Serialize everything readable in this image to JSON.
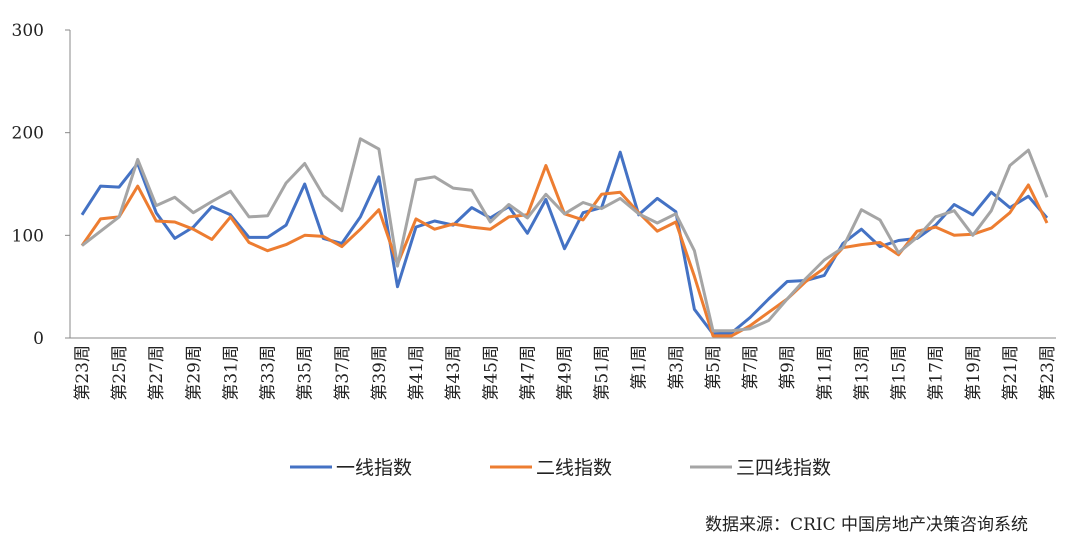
{
  "chart_data": {
    "type": "line",
    "categories": [
      "第23周",
      null,
      "第25周",
      null,
      "第27周",
      null,
      "第29周",
      null,
      "第31周",
      null,
      "第33周",
      null,
      "第35周",
      null,
      "第37周",
      null,
      "第39周",
      null,
      "第41周",
      null,
      "第43周",
      null,
      "第45周",
      null,
      "第47周",
      null,
      "第49周",
      null,
      "第51周",
      null,
      "第1周",
      null,
      "第3周",
      null,
      "第5周",
      null,
      "第7周",
      null,
      "第9周",
      null,
      "第11周",
      null,
      "第13周",
      null,
      "第15周",
      null,
      "第17周",
      null,
      "第19周",
      null,
      "第21周",
      null,
      "第23周"
    ],
    "series": [
      {
        "name": "一线指数",
        "color": "#4472c4",
        "values": [
          120,
          148,
          147,
          170,
          122,
          97,
          108,
          128,
          120,
          98,
          98,
          110,
          150,
          97,
          92,
          118,
          157,
          50,
          108,
          114,
          110,
          127,
          117,
          128,
          102,
          135,
          87,
          122,
          127,
          181,
          120,
          136,
          123,
          28,
          4,
          5,
          20,
          38,
          55,
          56,
          61,
          92,
          106,
          89,
          95,
          97,
          110,
          130,
          120,
          142,
          127,
          138,
          117
        ]
      },
      {
        "name": "二线指数",
        "color": "#ed7d31",
        "values": [
          90,
          116,
          118,
          148,
          114,
          113,
          106,
          96,
          118,
          93,
          85,
          91,
          100,
          99,
          89,
          106,
          125,
          72,
          116,
          106,
          111,
          108,
          106,
          118,
          120,
          168,
          121,
          115,
          140,
          142,
          122,
          104,
          113,
          60,
          2,
          2,
          12,
          25,
          38,
          55,
          68,
          88,
          91,
          93,
          81,
          104,
          108,
          100,
          101,
          107,
          122,
          149,
          112
        ]
      },
      {
        "name": "三四线指数",
        "color": "#a5a5a5",
        "values": [
          90,
          104,
          118,
          174,
          129,
          137,
          122,
          133,
          143,
          118,
          119,
          151,
          170,
          139,
          124,
          194,
          184,
          70,
          154,
          157,
          146,
          144,
          113,
          130,
          117,
          140,
          121,
          132,
          126,
          136,
          121,
          112,
          121,
          85,
          7,
          7,
          9,
          17,
          38,
          58,
          76,
          88,
          125,
          115,
          83,
          98,
          118,
          124,
          100,
          124,
          168,
          183,
          137
        ]
      }
    ],
    "ylim": [
      0,
      300
    ],
    "yticks": [
      0,
      100,
      200,
      300
    ],
    "grid": false,
    "legend": "bottom",
    "source": "数据来源：CRIC 中国房地产决策咨询系统"
  }
}
